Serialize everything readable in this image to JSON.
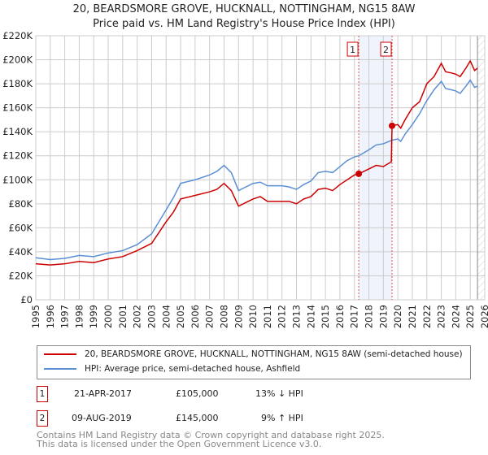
{
  "title": "20, BEARDSMORE GROVE, HUCKNALL, NOTTINGHAM, NG15 8AW",
  "subtitle": "Price paid vs. HM Land Registry's House Price Index (HPI)",
  "chart_data": {
    "type": "line",
    "ylim": [
      0,
      220000
    ],
    "xlim": [
      1995,
      2026
    ],
    "yticks": [
      0,
      20000,
      40000,
      60000,
      80000,
      100000,
      120000,
      140000,
      160000,
      180000,
      200000,
      220000
    ],
    "ytick_labels": [
      "£0",
      "£20K",
      "£40K",
      "£60K",
      "£80K",
      "£100K",
      "£120K",
      "£140K",
      "£160K",
      "£180K",
      "£200K",
      "£220K"
    ],
    "xticks": [
      "1995",
      "1996",
      "1997",
      "1998",
      "1999",
      "2000",
      "2001",
      "2002",
      "2003",
      "2004",
      "2005",
      "2006",
      "2007",
      "2008",
      "2009",
      "2010",
      "2011",
      "2012",
      "2013",
      "2014",
      "2015",
      "2016",
      "2017",
      "2018",
      "2019",
      "2020",
      "2021",
      "2022",
      "2023",
      "2024",
      "2025",
      "2026"
    ],
    "grid": true,
    "series": [
      {
        "name": "20, BEARDSMORE GROVE, HUCKNALL, NOTTINGHAM, NG15 8AW (semi-detached house)",
        "color": "#cc0000",
        "x": [
          1995,
          1996,
          1997,
          1998,
          1999,
          2000,
          2001,
          2002,
          2003,
          2003.5,
          2004,
          2004.5,
          2005,
          2006,
          2007,
          2007.5,
          2008,
          2008.5,
          2009,
          2009.5,
          2010,
          2010.5,
          2011,
          2012,
          2012.5,
          2013,
          2013.5,
          2014,
          2014.5,
          2015,
          2015.5,
          2016,
          2016.5,
          2017,
          2017.3,
          2018,
          2018.5,
          2019,
          2019.55,
          2019.6,
          2020,
          2020.2,
          2020.5,
          2021,
          2021.5,
          2022,
          2022.5,
          2023,
          2023.3,
          2023.7,
          2024,
          2024.3,
          2024.7,
          2025,
          2025.3,
          2025.5
        ],
        "y": [
          30000,
          29000,
          30000,
          32000,
          31000,
          34000,
          36000,
          41000,
          47000,
          56000,
          65000,
          73000,
          84000,
          87000,
          90000,
          92000,
          97000,
          91000,
          78000,
          81000,
          84000,
          86000,
          82000,
          82000,
          82000,
          80000,
          84000,
          86000,
          92000,
          93000,
          91000,
          96000,
          100000,
          104000,
          105000,
          109000,
          112000,
          111000,
          115000,
          145000,
          146000,
          143000,
          150000,
          160000,
          165000,
          180000,
          186000,
          197000,
          190000,
          189000,
          188000,
          186000,
          193000,
          199000,
          191000,
          193000
        ]
      },
      {
        "name": "HPI: Average price, semi-detached house, Ashfield",
        "color": "#5b8fd4",
        "x": [
          1995,
          1996,
          1997,
          1998,
          1999,
          2000,
          2001,
          2002,
          2003,
          2003.5,
          2004,
          2004.5,
          2005,
          2006,
          2007,
          2007.5,
          2008,
          2008.5,
          2009,
          2009.5,
          2010,
          2010.5,
          2011,
          2012,
          2012.5,
          2013,
          2013.5,
          2014,
          2014.5,
          2015,
          2015.5,
          2016,
          2016.5,
          2017,
          2017.3,
          2018,
          2018.5,
          2019,
          2019.6,
          2020,
          2020.2,
          2020.5,
          2021,
          2021.5,
          2022,
          2022.5,
          2023,
          2023.3,
          2023.7,
          2024,
          2024.3,
          2024.7,
          2025,
          2025.3,
          2025.5
        ],
        "y": [
          35000,
          33500,
          34500,
          37000,
          36000,
          39000,
          41000,
          46000,
          55000,
          65000,
          75000,
          85000,
          97000,
          100000,
          104000,
          107000,
          112000,
          106000,
          91000,
          94000,
          97000,
          98000,
          95000,
          95000,
          94000,
          92000,
          96000,
          99000,
          106000,
          107000,
          106000,
          111000,
          116000,
          119000,
          120000,
          125000,
          129000,
          130000,
          133000,
          134000,
          132000,
          138000,
          146000,
          155000,
          166000,
          175000,
          182000,
          176000,
          175000,
          174000,
          172000,
          178000,
          183000,
          177000,
          178000
        ]
      }
    ],
    "sales": [
      {
        "id": "1",
        "x": 2017.3,
        "y": 105000,
        "date": "21-APR-2017",
        "price": "£105,000",
        "hpi": "13% ↓ HPI"
      },
      {
        "id": "2",
        "x": 2019.6,
        "y": 145000,
        "date": "09-AUG-2019",
        "price": "£145,000",
        "hpi": "9% ↑ HPI"
      }
    ],
    "hatched_from": 2025.5
  },
  "legend": {
    "property": "20, BEARDSMORE GROVE, HUCKNALL, NOTTINGHAM, NG15 8AW (semi-detached house)",
    "hpi": "HPI: Average price, semi-detached house, Ashfield"
  },
  "footer": {
    "line1": "Contains HM Land Registry data © Crown copyright and database right 2025.",
    "line2": "This data is licensed under the Open Government Licence v3.0."
  }
}
